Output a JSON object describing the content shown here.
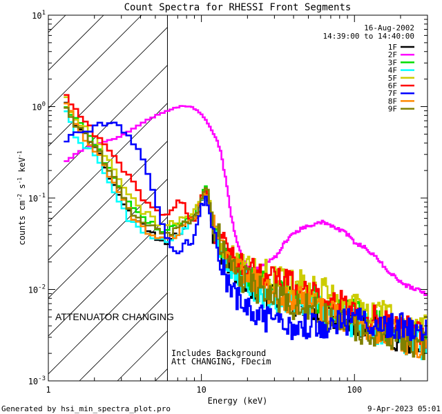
{
  "chart_data": {
    "type": "line",
    "title": "Count Spectra for RHESSI Front Segments",
    "xlabel": "Energy (keV)",
    "ylabel": "counts cm",
    "ylabel_parts": [
      "counts cm",
      "-2",
      " s",
      "-1",
      " keV",
      "-1"
    ],
    "xscale": "log",
    "yscale": "log",
    "xlim": [
      1,
      300
    ],
    "ylim": [
      0.001,
      10
    ],
    "x_ticks": [
      {
        "v": 1,
        "label": "1"
      },
      {
        "v": 10,
        "label": "10"
      },
      {
        "v": 100,
        "label": "100"
      }
    ],
    "y_ticks": [
      {
        "v": 0.001,
        "base": "10",
        "exp": "-3"
      },
      {
        "v": 0.01,
        "base": "10",
        "exp": "-2"
      },
      {
        "v": 0.1,
        "base": "10",
        "exp": "-1"
      },
      {
        "v": 1,
        "base": "10",
        "exp": "0"
      },
      {
        "v": 10,
        "base": "10",
        "exp": "1"
      }
    ],
    "attenuator_boundary_kev": 6,
    "info": {
      "date": "16-Aug-2002",
      "time_range": "14:39:00 to 14:40:00"
    },
    "annotations": {
      "attenuator": "ATTENUATOR CHANGING",
      "background": "Includes Background",
      "att_state": "Att CHANGING, FDecim"
    },
    "attenuator_color": "#dd0000",
    "series": [
      {
        "name": "1F",
        "color": "#000000",
        "noise": 0.34,
        "points": [
          [
            1.3,
            1.1
          ],
          [
            1.5,
            0.62
          ],
          [
            2.0,
            0.38
          ],
          [
            2.5,
            0.18
          ],
          [
            3.0,
            0.095
          ],
          [
            3.5,
            0.062
          ],
          [
            4.0,
            0.052
          ],
          [
            5.0,
            0.036
          ],
          [
            6.0,
            0.032
          ],
          [
            7.0,
            0.04
          ],
          [
            8.0,
            0.052
          ],
          [
            9.0,
            0.06
          ],
          [
            10.0,
            0.09
          ],
          [
            10.8,
            0.12
          ],
          [
            12.0,
            0.045
          ],
          [
            15.0,
            0.02
          ],
          [
            20.0,
            0.012
          ],
          [
            30.0,
            0.008
          ],
          [
            50.0,
            0.007
          ],
          [
            80.0,
            0.005
          ],
          [
            120.0,
            0.004
          ],
          [
            200.0,
            0.003
          ],
          [
            280.0,
            0.0025
          ]
        ]
      },
      {
        "name": "2F",
        "color": "#ff00ff",
        "noise": 0.04,
        "points": [
          [
            1.3,
            0.25
          ],
          [
            1.5,
            0.3
          ],
          [
            1.8,
            0.36
          ],
          [
            2.2,
            0.4
          ],
          [
            2.8,
            0.45
          ],
          [
            3.5,
            0.56
          ],
          [
            4.5,
            0.72
          ],
          [
            5.5,
            0.85
          ],
          [
            6.5,
            0.95
          ],
          [
            7.5,
            1.02
          ],
          [
            8.5,
            1.0
          ],
          [
            9.5,
            0.9
          ],
          [
            10.5,
            0.75
          ],
          [
            11.5,
            0.58
          ],
          [
            12.5,
            0.45
          ],
          [
            13.5,
            0.3
          ],
          [
            14.5,
            0.15
          ],
          [
            15.5,
            0.07
          ],
          [
            16.5,
            0.04
          ],
          [
            18.0,
            0.025
          ],
          [
            20.0,
            0.017
          ],
          [
            22.0,
            0.016
          ],
          [
            25.0,
            0.018
          ],
          [
            30.0,
            0.022
          ],
          [
            35.0,
            0.032
          ],
          [
            40.0,
            0.042
          ],
          [
            50.0,
            0.05
          ],
          [
            60.0,
            0.055
          ],
          [
            70.0,
            0.05
          ],
          [
            80.0,
            0.045
          ],
          [
            90.0,
            0.04
          ],
          [
            100.0,
            0.033
          ],
          [
            120.0,
            0.028
          ],
          [
            140.0,
            0.022
          ],
          [
            160.0,
            0.017
          ],
          [
            190.0,
            0.013
          ],
          [
            220.0,
            0.011
          ],
          [
            260.0,
            0.01
          ],
          [
            290.0,
            0.009
          ]
        ]
      },
      {
        "name": "3F",
        "color": "#00dd00",
        "noise": 0.33,
        "points": [
          [
            1.3,
            0.95
          ],
          [
            1.5,
            0.7
          ],
          [
            2.0,
            0.42
          ],
          [
            2.5,
            0.2
          ],
          [
            3.0,
            0.12
          ],
          [
            3.5,
            0.08
          ],
          [
            4.0,
            0.065
          ],
          [
            5.0,
            0.048
          ],
          [
            6.0,
            0.045
          ],
          [
            7.0,
            0.05
          ],
          [
            8.0,
            0.058
          ],
          [
            9.0,
            0.065
          ],
          [
            10.0,
            0.1
          ],
          [
            10.8,
            0.13
          ],
          [
            12.0,
            0.05
          ],
          [
            15.0,
            0.022
          ],
          [
            20.0,
            0.014
          ],
          [
            30.0,
            0.01
          ],
          [
            50.0,
            0.008
          ],
          [
            80.0,
            0.006
          ],
          [
            120.0,
            0.005
          ],
          [
            200.0,
            0.0035
          ],
          [
            280.0,
            0.003
          ]
        ]
      },
      {
        "name": "4F",
        "color": "#00ffff",
        "noise": 0.34,
        "points": [
          [
            1.3,
            0.85
          ],
          [
            1.5,
            0.5
          ],
          [
            2.0,
            0.3
          ],
          [
            2.5,
            0.14
          ],
          [
            3.0,
            0.08
          ],
          [
            3.5,
            0.055
          ],
          [
            4.0,
            0.045
          ],
          [
            5.0,
            0.035
          ],
          [
            6.0,
            0.033
          ],
          [
            7.0,
            0.04
          ],
          [
            8.0,
            0.05
          ],
          [
            9.0,
            0.058
          ],
          [
            10.0,
            0.09
          ],
          [
            10.8,
            0.11
          ],
          [
            12.0,
            0.04
          ],
          [
            15.0,
            0.015
          ],
          [
            20.0,
            0.011
          ],
          [
            30.0,
            0.008
          ],
          [
            50.0,
            0.007
          ],
          [
            80.0,
            0.005
          ],
          [
            120.0,
            0.004
          ],
          [
            200.0,
            0.003
          ],
          [
            280.0,
            0.0025
          ]
        ]
      },
      {
        "name": "5F",
        "color": "#cccc00",
        "noise": 0.32,
        "points": [
          [
            1.3,
            1.2
          ],
          [
            1.5,
            0.75
          ],
          [
            2.0,
            0.45
          ],
          [
            2.5,
            0.25
          ],
          [
            3.0,
            0.14
          ],
          [
            3.5,
            0.1
          ],
          [
            4.0,
            0.075
          ],
          [
            5.0,
            0.055
          ],
          [
            6.0,
            0.05
          ],
          [
            7.0,
            0.055
          ],
          [
            8.0,
            0.062
          ],
          [
            9.0,
            0.07
          ],
          [
            10.0,
            0.1
          ],
          [
            10.8,
            0.13
          ],
          [
            12.0,
            0.055
          ],
          [
            15.0,
            0.025
          ],
          [
            20.0,
            0.018
          ],
          [
            30.0,
            0.014
          ],
          [
            50.0,
            0.011
          ],
          [
            80.0,
            0.008
          ],
          [
            120.0,
            0.006
          ],
          [
            200.0,
            0.0045
          ],
          [
            280.0,
            0.004
          ]
        ]
      },
      {
        "name": "6F",
        "color": "#ff0000",
        "noise": 0.3,
        "points": [
          [
            1.3,
            1.25
          ],
          [
            1.5,
            0.95
          ],
          [
            2.0,
            0.5
          ],
          [
            2.5,
            0.32
          ],
          [
            3.0,
            0.22
          ],
          [
            3.5,
            0.15
          ],
          [
            4.0,
            0.11
          ],
          [
            5.0,
            0.075
          ],
          [
            6.0,
            0.065
          ],
          [
            7.0,
            0.09
          ],
          [
            7.8,
            0.085
          ],
          [
            8.5,
            0.055
          ],
          [
            9.5,
            0.065
          ],
          [
            10.0,
            0.1
          ],
          [
            10.8,
            0.12
          ],
          [
            12.0,
            0.045
          ],
          [
            15.0,
            0.025
          ],
          [
            20.0,
            0.018
          ],
          [
            30.0,
            0.013
          ],
          [
            50.0,
            0.01
          ],
          [
            80.0,
            0.007
          ],
          [
            120.0,
            0.005
          ],
          [
            200.0,
            0.004
          ],
          [
            280.0,
            0.003
          ]
        ]
      },
      {
        "name": "7F",
        "color": "#0000ff",
        "noise": 0.32,
        "points": [
          [
            1.3,
            0.45
          ],
          [
            1.6,
            0.52
          ],
          [
            2.0,
            0.6
          ],
          [
            2.4,
            0.65
          ],
          [
            2.8,
            0.62
          ],
          [
            3.2,
            0.55
          ],
          [
            3.6,
            0.42
          ],
          [
            4.0,
            0.3
          ],
          [
            4.5,
            0.17
          ],
          [
            5.0,
            0.09
          ],
          [
            5.5,
            0.05
          ],
          [
            6.0,
            0.035
          ],
          [
            6.5,
            0.03
          ],
          [
            7.0,
            0.025
          ],
          [
            7.5,
            0.028
          ],
          [
            8.0,
            0.035
          ],
          [
            8.5,
            0.028
          ],
          [
            9.0,
            0.04
          ],
          [
            9.5,
            0.055
          ],
          [
            10.0,
            0.08
          ],
          [
            10.8,
            0.1
          ],
          [
            12.0,
            0.04
          ],
          [
            15.0,
            0.01
          ],
          [
            20.0,
            0.006
          ],
          [
            30.0,
            0.004
          ],
          [
            50.0,
            0.004
          ],
          [
            80.0,
            0.0045
          ],
          [
            120.0,
            0.0045
          ],
          [
            200.0,
            0.004
          ],
          [
            280.0,
            0.0035
          ]
        ]
      },
      {
        "name": "8F",
        "color": "#ff8800",
        "noise": 0.33,
        "points": [
          [
            1.3,
            1.2
          ],
          [
            1.5,
            0.6
          ],
          [
            2.0,
            0.36
          ],
          [
            2.5,
            0.17
          ],
          [
            3.0,
            0.1
          ],
          [
            3.5,
            0.065
          ],
          [
            4.0,
            0.05
          ],
          [
            5.0,
            0.038
          ],
          [
            6.0,
            0.035
          ],
          [
            7.0,
            0.042
          ],
          [
            8.0,
            0.05
          ],
          [
            9.0,
            0.058
          ],
          [
            10.0,
            0.09
          ],
          [
            10.8,
            0.12
          ],
          [
            12.0,
            0.045
          ],
          [
            15.0,
            0.02
          ],
          [
            20.0,
            0.013
          ],
          [
            30.0,
            0.009
          ],
          [
            50.0,
            0.007
          ],
          [
            80.0,
            0.005
          ],
          [
            120.0,
            0.004
          ],
          [
            200.0,
            0.003
          ],
          [
            280.0,
            0.0025
          ]
        ]
      },
      {
        "name": "9F",
        "color": "#808000",
        "noise": 0.33,
        "points": [
          [
            1.3,
            1.05
          ],
          [
            1.5,
            0.65
          ],
          [
            2.0,
            0.38
          ],
          [
            2.5,
            0.2
          ],
          [
            3.0,
            0.11
          ],
          [
            3.5,
            0.07
          ],
          [
            4.0,
            0.056
          ],
          [
            5.0,
            0.045
          ],
          [
            6.0,
            0.04
          ],
          [
            7.0,
            0.045
          ],
          [
            8.0,
            0.055
          ],
          [
            9.0,
            0.06
          ],
          [
            10.0,
            0.09
          ],
          [
            10.8,
            0.14
          ],
          [
            12.0,
            0.05
          ],
          [
            15.0,
            0.02
          ],
          [
            20.0,
            0.012
          ],
          [
            30.0,
            0.008
          ],
          [
            50.0,
            0.006
          ],
          [
            80.0,
            0.0045
          ],
          [
            120.0,
            0.0035
          ],
          [
            200.0,
            0.0028
          ],
          [
            280.0,
            0.0025
          ]
        ]
      }
    ]
  },
  "footer": {
    "generated": "Generated by hsi_min_spectra_plot.pro",
    "timestamp": "9-Apr-2023 05:01"
  }
}
